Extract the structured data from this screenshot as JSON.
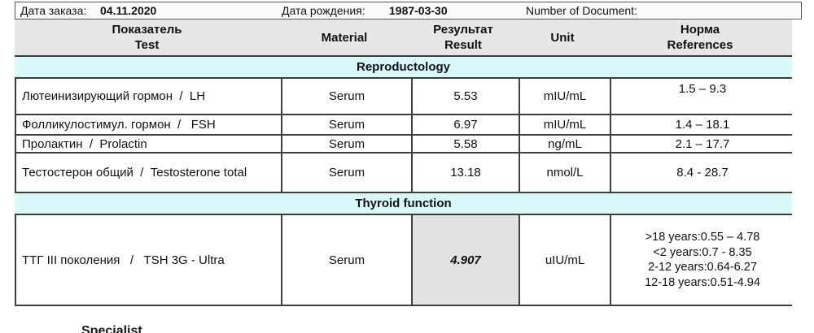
{
  "topbar": {
    "order_date_label": "Дата заказа:",
    "order_date_value": "04.11.2020",
    "birth_date_label": "Дата рождения:",
    "birth_date_value": "1987-03-30",
    "document_label": "Number of Document:"
  },
  "header": {
    "test_ru": "Показатель",
    "test_en": "Test",
    "material": "Material",
    "result_ru": "Результат",
    "result_en": "Result",
    "unit": "Unit",
    "references_ru": "Норма",
    "references_en": "References"
  },
  "sections": [
    {
      "title": "Reproductology",
      "rows": [
        {
          "test": "Лютеинизирующий гормон  /  LH",
          "material": "Serum",
          "result": "5.53",
          "unit": "mIU/mL",
          "references": [
            "1.5 – 9.3"
          ]
        },
        {
          "test": "Фолликулостимул. гормон  /   FSH",
          "material": "Serum",
          "result": "6.97",
          "unit": "mIU/mL",
          "references": [
            "1.4 – 18.1"
          ]
        },
        {
          "test": "Пролактин  /  Prolactin",
          "material": "Serum",
          "result": "5.58",
          "unit": "ng/mL",
          "references": [
            "2.1 – 17.7"
          ]
        },
        {
          "test": "Тестостерон общий  /  Testosterone total",
          "material": "Serum",
          "result": "13.18",
          "unit": "nmol/L",
          "references": [
            "8.4 - 28.7"
          ]
        }
      ]
    },
    {
      "title": "Thyroid function",
      "rows": [
        {
          "test": "ТТГ III поколения   /   TSH 3G - Ultra",
          "material": "Serum",
          "result": "4.907",
          "unit": "uIU/mL",
          "references": [
            ">18 years:0.55 – 4.78",
            "<2 years:0.7 - 8.35",
            "2-12 years:0.64-6.27",
            "12-18 years:0.51-4.94"
          ]
        }
      ]
    }
  ],
  "footer": {
    "partial_text": "Specialist"
  },
  "colors": {
    "section_band": "#d9f8fa",
    "header_row": "#e7e7e7",
    "result_highlight": "#e2e2e2",
    "grid_line": "#3f3f3f"
  }
}
